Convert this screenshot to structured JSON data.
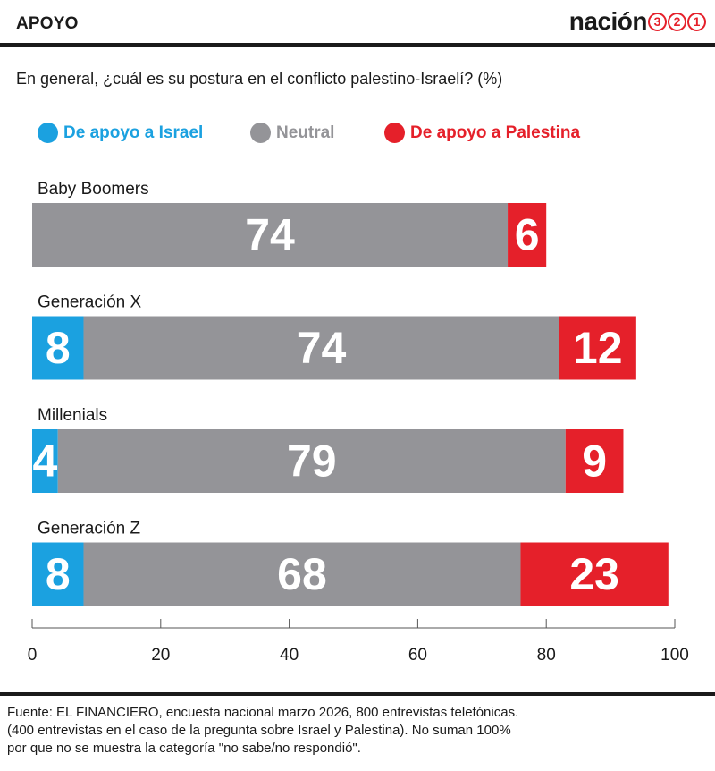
{
  "header": {
    "section": "APOYO",
    "brand": "nación",
    "brand_numbers": [
      "3",
      "2",
      "1"
    ]
  },
  "question": "En general, ¿cuál es su postura en el conflicto palestino-Israelí? (%)",
  "legend": [
    {
      "label": "De apoyo a Israel",
      "color": "#1ba1e0"
    },
    {
      "label": "Neutral",
      "color": "#949498"
    },
    {
      "label": "De apoyo a Palestina",
      "color": "#e5202a"
    }
  ],
  "chart_data": {
    "type": "bar",
    "orientation": "horizontal",
    "stacked": true,
    "categories": [
      "Baby Boomers",
      "Generación X",
      "Millenials",
      "Generación Z"
    ],
    "series": [
      {
        "name": "De apoyo a Israel",
        "color": "#1ba1e0",
        "values": [
          null,
          8,
          4,
          8
        ]
      },
      {
        "name": "Neutral",
        "color": "#949498",
        "values": [
          74,
          74,
          79,
          68
        ]
      },
      {
        "name": "De apoyo a Palestina",
        "color": "#e5202a",
        "values": [
          6,
          12,
          9,
          23
        ]
      }
    ],
    "xlim": [
      0,
      100
    ],
    "xticks": [
      0,
      20,
      40,
      60,
      80,
      100
    ],
    "legend_position": "top",
    "grid": false
  },
  "footnote": [
    "Fuente: EL FINANCIERO, encuesta nacional marzo 2026, 800 entrevistas telefónicas.",
    "(400 entrevistas en el caso de la pregunta sobre Israel y Palestina). No suman 100%",
    "por que no se muestra la categoría \"no sabe/no respondió\"."
  ]
}
